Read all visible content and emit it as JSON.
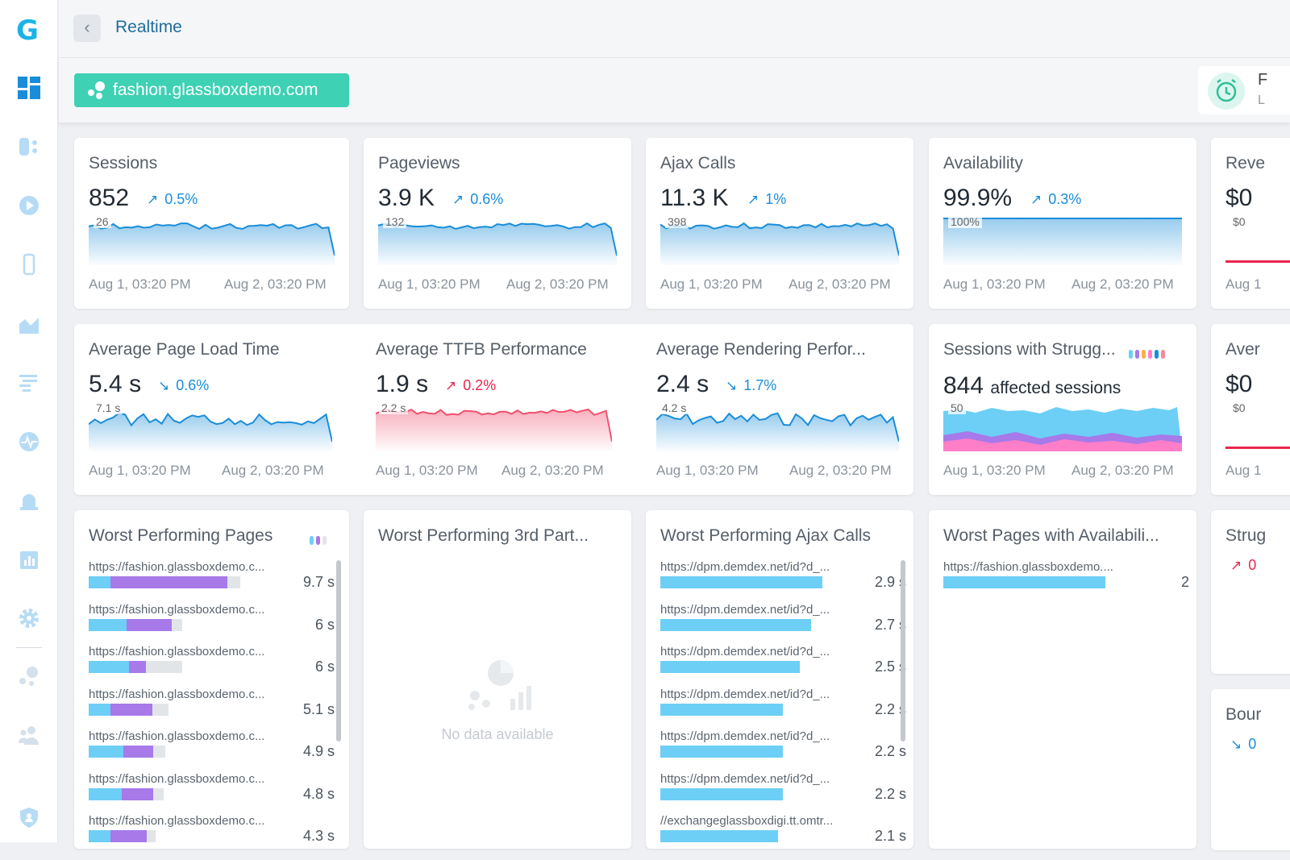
{
  "sidebar": {
    "logo": "G",
    "items": [
      {
        "icon": "dashboard-icon"
      },
      {
        "icon": "funnel-icon"
      },
      {
        "icon": "play-icon"
      },
      {
        "icon": "mobile-icon"
      },
      {
        "icon": "area-chart-icon"
      },
      {
        "icon": "list-icon"
      },
      {
        "icon": "pulse-icon"
      },
      {
        "icon": "alarm-icon"
      },
      {
        "icon": "report-icon"
      },
      {
        "icon": "gear-icon"
      },
      {
        "icon": "apps-icon"
      },
      {
        "icon": "users-icon"
      },
      {
        "icon": "shield-icon"
      }
    ]
  },
  "header": {
    "title": "Realtime"
  },
  "app_selector": {
    "label": "fashion.glassboxdemo.com"
  },
  "time_range": {
    "line1": "F",
    "line2": "L"
  },
  "colors": {
    "accent": "#1a8dd8",
    "chip": "#3ed1b4",
    "series_blue": "#6dcff6",
    "series_purple": "#a779e9",
    "negative": "#e8264e"
  },
  "dates": {
    "start": "Aug 1, 03:20 PM",
    "end": "Aug 2, 03:20 PM",
    "start_short": "Aug 1"
  },
  "kpis": {
    "sessions": {
      "title": "Sessions",
      "value": "852",
      "change": "0.5%",
      "ref": "26"
    },
    "pageviews": {
      "title": "Pageviews",
      "value": "3.9 K",
      "change": "0.6%",
      "ref": "132"
    },
    "ajax": {
      "title": "Ajax Calls",
      "value": "11.3 K",
      "change": "1%",
      "ref": "398"
    },
    "availability": {
      "title": "Availability",
      "value": "99.9%",
      "change": "0.3%",
      "ref": "100%"
    },
    "revenue": {
      "title": "Reve",
      "value": "$0",
      "ref": "$0"
    }
  },
  "performance": {
    "page_load": {
      "title": "Average Page Load Time",
      "value": "5.4",
      "unit": "s",
      "change": "0.6%",
      "ref": "7.1 s"
    },
    "ttfb": {
      "title": "Average TTFB Performance",
      "value": "1.9",
      "unit": "s",
      "change": "0.2%",
      "ref": "2.2 s"
    },
    "rendering": {
      "title": "Average Rendering Perfor...",
      "value": "2.4",
      "unit": "s",
      "change": "1.7%",
      "ref": "4.2 s"
    }
  },
  "struggle": {
    "title": "Sessions with Strugg...",
    "value": "844",
    "label": "affected sessions",
    "ref": "50"
  },
  "avg_card": {
    "title": "Aver",
    "value": "$0",
    "ref": "$0"
  },
  "worst_pages": {
    "title": "Worst Performing Pages",
    "rows": [
      {
        "url": "https://fashion.glassboxdemo.c...",
        "value": "9.7 s",
        "total": 9.7,
        "seg_a": 1.4,
        "seg_b": 7.5
      },
      {
        "url": "https://fashion.glassboxdemo.c...",
        "value": "6 s",
        "total": 6.0,
        "seg_a": 2.4,
        "seg_b": 2.9
      },
      {
        "url": "https://fashion.glassboxdemo.c...",
        "value": "6 s",
        "total": 6.0,
        "seg_a": 2.6,
        "seg_b": 1.1
      },
      {
        "url": "https://fashion.glassboxdemo.c...",
        "value": "5.1 s",
        "total": 5.1,
        "seg_a": 1.4,
        "seg_b": 2.7
      },
      {
        "url": "https://fashion.glassboxdemo.c...",
        "value": "4.9 s",
        "total": 4.9,
        "seg_a": 2.2,
        "seg_b": 1.9
      },
      {
        "url": "https://fashion.glassboxdemo.c...",
        "value": "4.8 s",
        "total": 4.8,
        "seg_a": 2.1,
        "seg_b": 2.0
      },
      {
        "url": "https://fashion.glassboxdemo.c...",
        "value": "4.3 s",
        "total": 4.3,
        "seg_a": 1.4,
        "seg_b": 2.3
      }
    ]
  },
  "worst_third_party": {
    "title": "Worst Performing 3rd Part...",
    "empty_text": "No data available"
  },
  "worst_ajax": {
    "title": "Worst Performing Ajax Calls",
    "rows": [
      {
        "url": "https://dpm.demdex.net/id?d_...",
        "value": "2.9 s",
        "total": 2.9
      },
      {
        "url": "https://dpm.demdex.net/id?d_...",
        "value": "2.7 s",
        "total": 2.7
      },
      {
        "url": "https://dpm.demdex.net/id?d_...",
        "value": "2.5 s",
        "total": 2.5
      },
      {
        "url": "https://dpm.demdex.net/id?d_...",
        "value": "2.2 s",
        "total": 2.2
      },
      {
        "url": "https://dpm.demdex.net/id?d_...",
        "value": "2.2 s",
        "total": 2.2
      },
      {
        "url": "https://dpm.demdex.net/id?d_...",
        "value": "2.2 s",
        "total": 2.2
      },
      {
        "url": "//exchangeglassboxdigi.tt.omtr...",
        "value": "2.1 s",
        "total": 2.1
      }
    ]
  },
  "worst_availability": {
    "title": "Worst Pages with Availabili...",
    "rows": [
      {
        "url": "https://fashion.glassboxdemo....",
        "value": "2",
        "total": 2
      }
    ]
  },
  "struggle_card2": {
    "title": "Strug",
    "change": "0"
  },
  "bounce_card": {
    "title": "Bour",
    "change": "0"
  }
}
